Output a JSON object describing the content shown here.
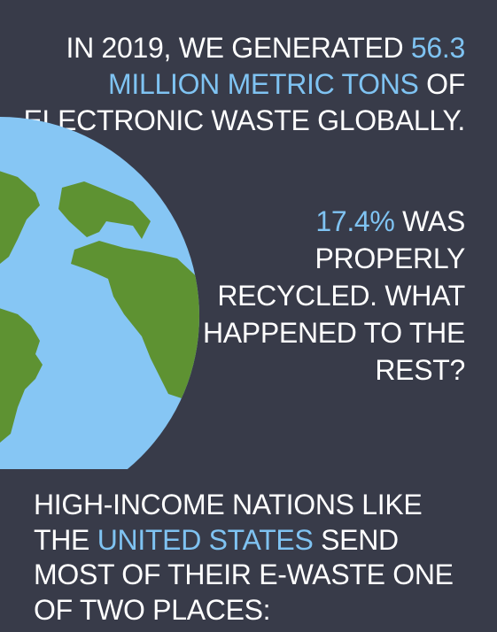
{
  "colors": {
    "background": "#383b49",
    "text": "#ffffff",
    "highlight": "#7fc3f2",
    "ocean": "#86c6f4",
    "land": "#5e9232"
  },
  "headline": {
    "part1": "IN 2019, WE GENERATED ",
    "highlight": "56.3 MILLION METRIC TONS",
    "part2": " OF ELECTRONIC WASTE GLOBALLY."
  },
  "recycled": {
    "highlight": "17.4%",
    "part1": " WAS PROPERLY RECYCLED. WHAT HAPPENED TO THE REST?"
  },
  "places": {
    "part1": "HIGH-INCOME NATIONS LIKE THE ",
    "highlight": "UNITED STATES",
    "part2": " SEND MOST OF THEIR E-WASTE ONE OF TWO PLACES:"
  },
  "globe": {
    "icon": "globe-icon"
  }
}
